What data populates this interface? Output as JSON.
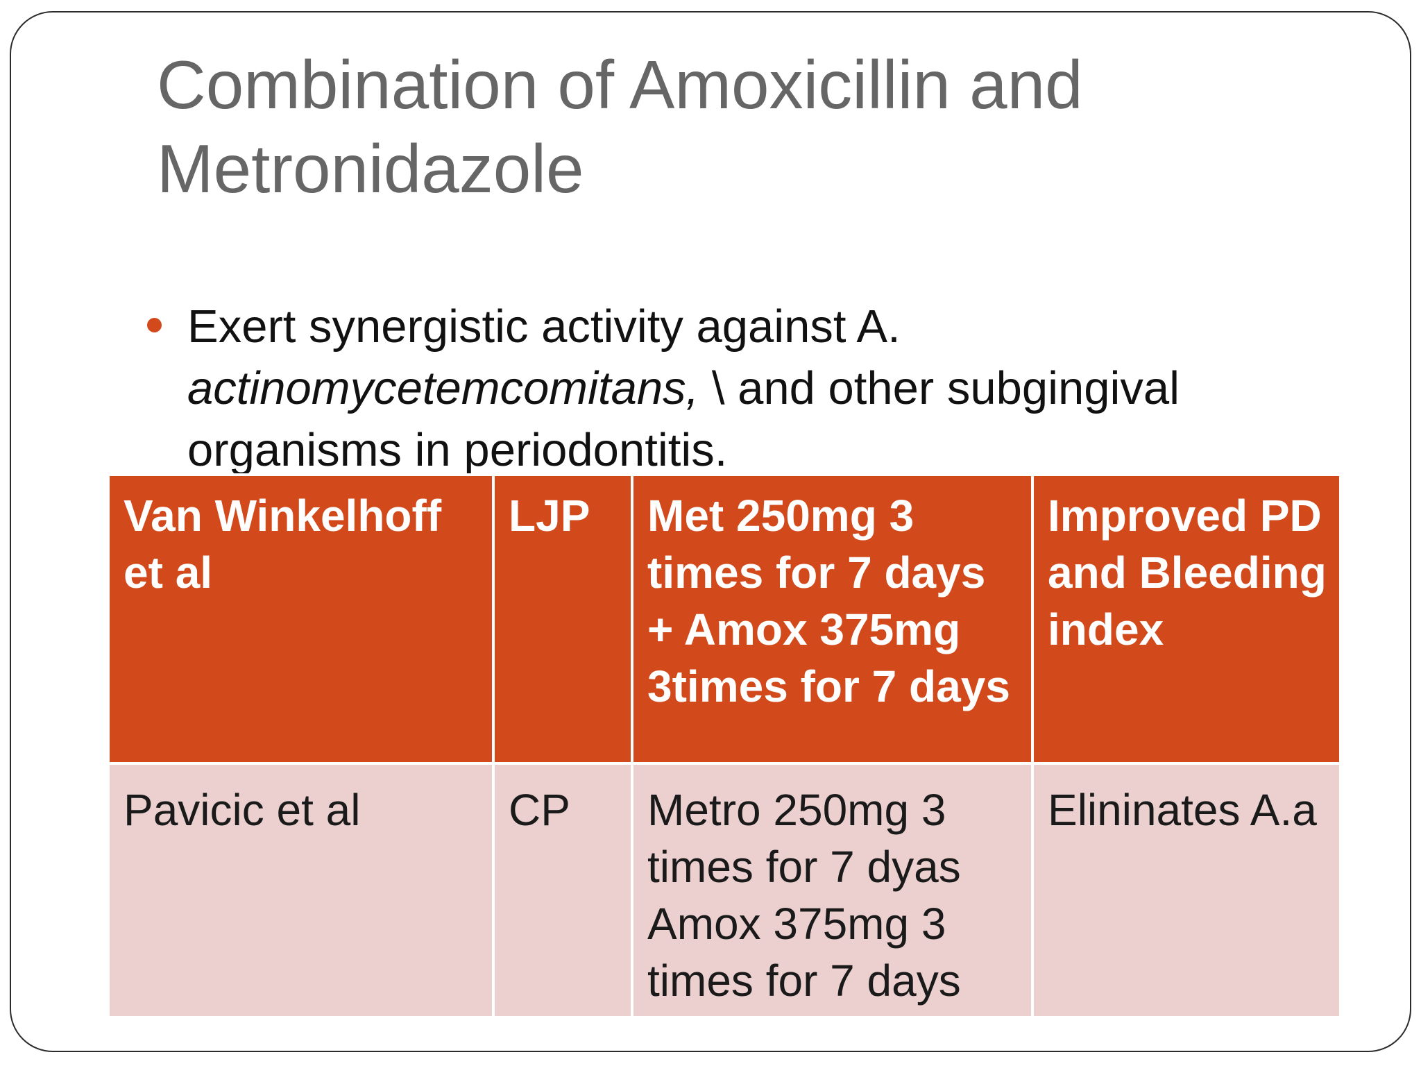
{
  "slide": {
    "title": "Combination of Amoxicillin and Metronidazole",
    "bullet": {
      "text_before": "Exert synergistic activity against A. ",
      "italic": "actinomycetemcomitans,",
      "text_after": " \\ and other subgingival organisms in periodontitis."
    },
    "table": {
      "rows": [
        [
          "Van Winkelhoff et al",
          "LJP",
          "Met 250mg 3 times for 7 days + Amox 375mg 3times for 7 days",
          "Improved PD and Bleeding index"
        ],
        [
          "Pavicic et al",
          "CP",
          "Metro 250mg 3 times for 7 dyas Amox 375mg 3 times for 7 days",
          "Elininates A.a"
        ]
      ]
    }
  },
  "colors": {
    "accent": "#d24a1c",
    "title": "#666666",
    "row_light": "#eccfcf"
  }
}
